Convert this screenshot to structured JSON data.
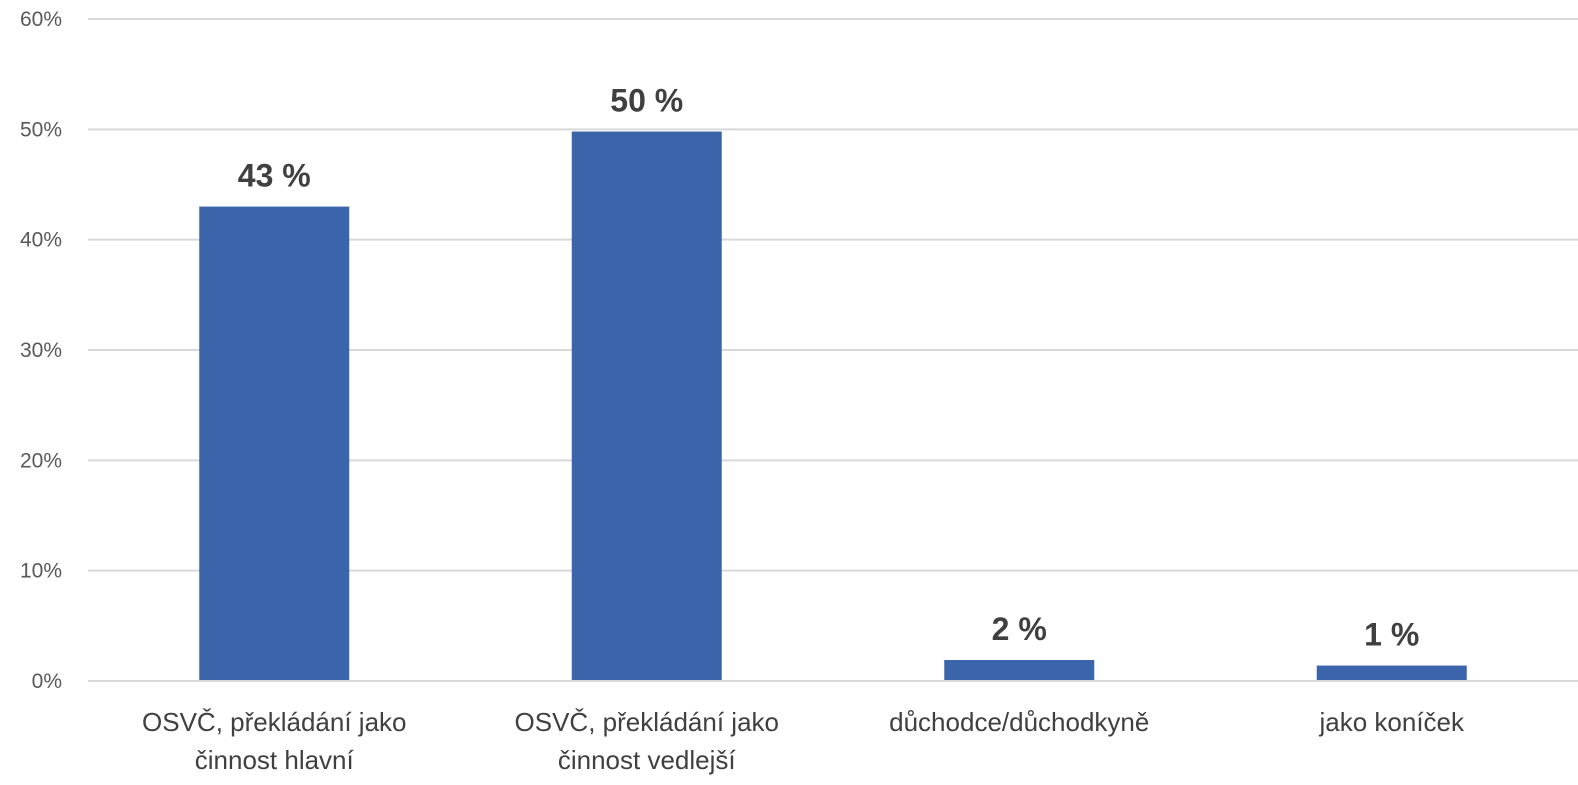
{
  "chart_data": {
    "type": "bar",
    "title": "",
    "xlabel": "",
    "ylabel": "",
    "categories": [
      [
        "OSVČ, překládání jako",
        "činnost hlavní"
      ],
      [
        "OSVČ, překládání jako",
        "činnost vedlejší"
      ],
      [
        "důchodce/důchodkyně"
      ],
      [
        "jako koníček"
      ]
    ],
    "values": [
      43,
      49.8,
      1.9,
      1.4
    ],
    "data_labels": [
      "43 %",
      "50 %",
      "2 %",
      "1 %"
    ],
    "ylim": [
      0,
      60
    ],
    "yticks": [
      0,
      10,
      20,
      30,
      40,
      50,
      60
    ],
    "ytick_labels": [
      "0%",
      "10%",
      "20%",
      "30%",
      "40%",
      "50%",
      "60%"
    ],
    "grid": true,
    "legend": "none",
    "colors": {
      "bar": "#3c64ab",
      "grid": "#d9d9d9",
      "tick_text": "#595959",
      "label_text": "#404040"
    }
  }
}
